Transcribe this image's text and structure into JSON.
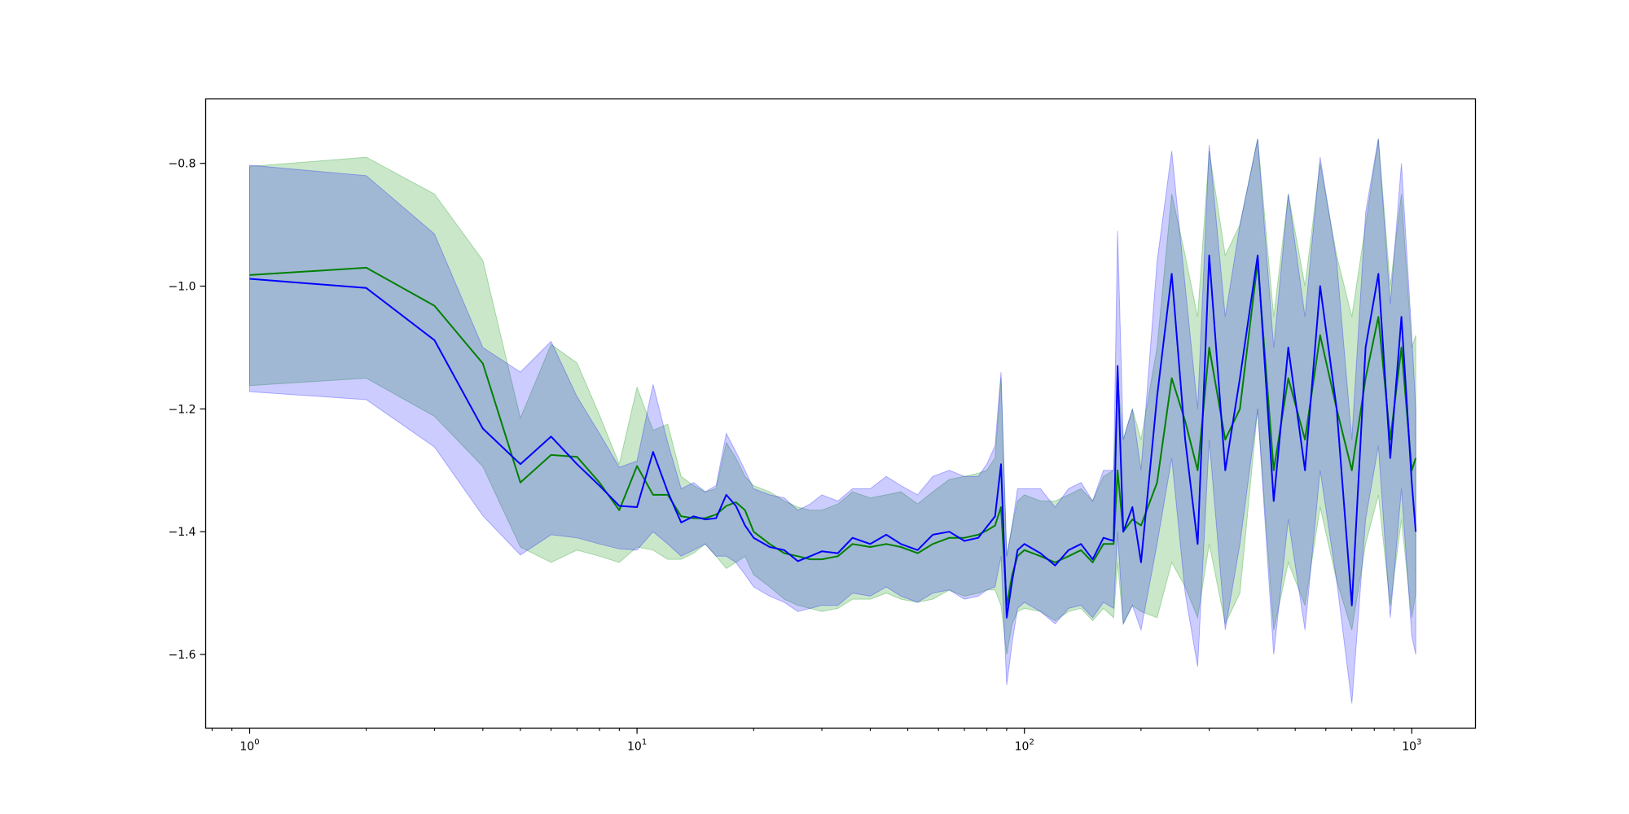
{
  "chart_data": {
    "type": "line",
    "xscale": "log",
    "xlim": [
      0.77,
      1460
    ],
    "ylim": [
      -1.72,
      -0.695
    ],
    "grid": false,
    "title": "",
    "xlabel": "",
    "ylabel": "",
    "xticks": [
      {
        "value": 1,
        "base": "10",
        "exp": "0"
      },
      {
        "value": 10,
        "base": "10",
        "exp": "1"
      },
      {
        "value": 100,
        "base": "10",
        "exp": "2"
      },
      {
        "value": 1000,
        "base": "10",
        "exp": "3"
      }
    ],
    "yticks": [
      {
        "value": -0.8,
        "label": "−0.8"
      },
      {
        "value": -1.0,
        "label": "−1.0"
      },
      {
        "value": -1.2,
        "label": "−1.2"
      },
      {
        "value": -1.4,
        "label": "−1.4"
      },
      {
        "value": -1.6,
        "label": "−1.6"
      }
    ],
    "series": [
      {
        "color": "#008000",
        "band_color": "#2ca02c",
        "band_opacity": 0.25,
        "x": [
          1,
          2,
          3,
          4,
          5,
          6,
          7,
          8,
          9,
          10,
          11,
          12,
          13,
          14,
          15,
          16,
          17,
          18,
          19,
          20,
          22,
          24,
          26,
          28,
          30,
          33,
          36,
          40,
          44,
          48,
          53,
          58,
          64,
          70,
          76,
          80,
          84,
          87,
          90,
          93,
          96,
          100,
          110,
          120,
          130,
          140,
          150,
          160,
          170,
          174,
          180,
          190,
          200,
          220,
          240,
          260,
          280,
          300,
          330,
          360,
          400,
          440,
          480,
          530,
          580,
          640,
          700,
          760,
          820,
          880,
          940,
          1000,
          1024
        ],
        "mean": [
          -0.982,
          -0.97,
          -1.032,
          -1.126,
          -1.32,
          -1.275,
          -1.278,
          -1.32,
          -1.365,
          -1.293,
          -1.34,
          -1.34,
          -1.375,
          -1.378,
          -1.378,
          -1.372,
          -1.358,
          -1.352,
          -1.365,
          -1.4,
          -1.42,
          -1.435,
          -1.44,
          -1.445,
          -1.445,
          -1.44,
          -1.42,
          -1.425,
          -1.42,
          -1.425,
          -1.435,
          -1.42,
          -1.41,
          -1.41,
          -1.405,
          -1.398,
          -1.39,
          -1.36,
          -1.52,
          -1.47,
          -1.44,
          -1.43,
          -1.44,
          -1.45,
          -1.44,
          -1.43,
          -1.45,
          -1.42,
          -1.42,
          -1.3,
          -1.4,
          -1.38,
          -1.39,
          -1.32,
          -1.15,
          -1.22,
          -1.3,
          -1.1,
          -1.25,
          -1.2,
          -0.96,
          -1.3,
          -1.15,
          -1.25,
          -1.08,
          -1.2,
          -1.3,
          -1.15,
          -1.05,
          -1.25,
          -1.1,
          -1.3,
          -1.28
        ],
        "upper": [
          -0.805,
          -0.79,
          -0.85,
          -0.958,
          -1.215,
          -1.095,
          -1.125,
          -1.21,
          -1.29,
          -1.165,
          -1.235,
          -1.225,
          -1.31,
          -1.325,
          -1.335,
          -1.33,
          -1.255,
          -1.28,
          -1.31,
          -1.325,
          -1.335,
          -1.35,
          -1.36,
          -1.365,
          -1.365,
          -1.355,
          -1.335,
          -1.345,
          -1.34,
          -1.335,
          -1.355,
          -1.335,
          -1.315,
          -1.31,
          -1.305,
          -1.3,
          -1.28,
          -1.15,
          -1.44,
          -1.39,
          -1.35,
          -1.34,
          -1.35,
          -1.35,
          -1.34,
          -1.33,
          -1.35,
          -1.31,
          -1.3,
          -1.15,
          -1.25,
          -1.2,
          -1.25,
          -1.1,
          -0.85,
          -0.95,
          -1.05,
          -0.78,
          -0.95,
          -0.9,
          -0.76,
          -1.05,
          -0.85,
          -1.0,
          -0.8,
          -0.95,
          -1.05,
          -0.9,
          -0.76,
          -1.0,
          -0.85,
          -1.1,
          -1.08
        ],
        "lower": [
          -1.162,
          -1.15,
          -1.212,
          -1.294,
          -1.425,
          -1.45,
          -1.43,
          -1.44,
          -1.45,
          -1.425,
          -1.43,
          -1.445,
          -1.445,
          -1.435,
          -1.42,
          -1.44,
          -1.46,
          -1.45,
          -1.44,
          -1.47,
          -1.49,
          -1.51,
          -1.52,
          -1.525,
          -1.53,
          -1.525,
          -1.51,
          -1.51,
          -1.5,
          -1.51,
          -1.515,
          -1.51,
          -1.495,
          -1.505,
          -1.5,
          -1.495,
          -1.495,
          -1.52,
          -1.6,
          -1.55,
          -1.53,
          -1.525,
          -1.53,
          -1.545,
          -1.53,
          -1.525,
          -1.545,
          -1.525,
          -1.54,
          -1.45,
          -1.55,
          -1.52,
          -1.53,
          -1.54,
          -1.45,
          -1.49,
          -1.54,
          -1.42,
          -1.55,
          -1.5,
          -1.2,
          -1.56,
          -1.45,
          -1.52,
          -1.36,
          -1.48,
          -1.56,
          -1.42,
          -1.34,
          -1.52,
          -1.38,
          -1.54,
          -1.5
        ]
      },
      {
        "color": "#0000ff",
        "band_color": "#0000ff",
        "band_opacity": 0.2,
        "x": [
          1,
          2,
          3,
          4,
          5,
          6,
          7,
          8,
          9,
          10,
          11,
          12,
          13,
          14,
          15,
          16,
          17,
          18,
          19,
          20,
          22,
          24,
          26,
          28,
          30,
          33,
          36,
          40,
          44,
          48,
          53,
          58,
          64,
          70,
          76,
          80,
          84,
          87,
          90,
          93,
          96,
          100,
          110,
          120,
          130,
          140,
          150,
          160,
          170,
          174,
          180,
          190,
          200,
          220,
          240,
          260,
          280,
          300,
          330,
          360,
          400,
          440,
          480,
          530,
          580,
          640,
          700,
          760,
          820,
          880,
          940,
          1000,
          1024
        ],
        "mean": [
          -0.988,
          -1.003,
          -1.088,
          -1.232,
          -1.29,
          -1.245,
          -1.29,
          -1.325,
          -1.358,
          -1.36,
          -1.27,
          -1.335,
          -1.385,
          -1.375,
          -1.38,
          -1.378,
          -1.34,
          -1.358,
          -1.39,
          -1.41,
          -1.425,
          -1.43,
          -1.448,
          -1.44,
          -1.432,
          -1.435,
          -1.41,
          -1.42,
          -1.405,
          -1.42,
          -1.43,
          -1.405,
          -1.4,
          -1.415,
          -1.41,
          -1.392,
          -1.375,
          -1.29,
          -1.54,
          -1.48,
          -1.43,
          -1.42,
          -1.435,
          -1.455,
          -1.43,
          -1.42,
          -1.445,
          -1.41,
          -1.415,
          -1.13,
          -1.4,
          -1.36,
          -1.45,
          -1.18,
          -0.98,
          -1.25,
          -1.42,
          -0.95,
          -1.3,
          -1.15,
          -0.95,
          -1.35,
          -1.1,
          -1.3,
          -1.0,
          -1.2,
          -1.52,
          -1.1,
          -0.98,
          -1.28,
          -1.05,
          -1.32,
          -1.4
        ],
        "upper": [
          -0.803,
          -0.82,
          -0.915,
          -1.1,
          -1.14,
          -1.09,
          -1.18,
          -1.24,
          -1.295,
          -1.285,
          -1.16,
          -1.255,
          -1.33,
          -1.32,
          -1.335,
          -1.325,
          -1.24,
          -1.27,
          -1.3,
          -1.33,
          -1.34,
          -1.345,
          -1.365,
          -1.355,
          -1.34,
          -1.35,
          -1.33,
          -1.33,
          -1.31,
          -1.325,
          -1.34,
          -1.31,
          -1.3,
          -1.31,
          -1.31,
          -1.29,
          -1.26,
          -1.14,
          -1.44,
          -1.39,
          -1.33,
          -1.33,
          -1.33,
          -1.36,
          -1.33,
          -1.32,
          -1.35,
          -1.3,
          -1.3,
          -0.91,
          -1.25,
          -1.2,
          -1.3,
          -0.96,
          -0.78,
          -1.0,
          -1.2,
          -0.77,
          -1.05,
          -0.9,
          -0.76,
          -1.1,
          -0.85,
          -1.05,
          -0.79,
          -0.96,
          -1.25,
          -0.88,
          -0.76,
          -1.03,
          -0.8,
          -1.08,
          -1.2
        ],
        "lower": [
          -1.172,
          -1.185,
          -1.262,
          -1.374,
          -1.438,
          -1.405,
          -1.41,
          -1.42,
          -1.428,
          -1.43,
          -1.4,
          -1.42,
          -1.44,
          -1.43,
          -1.42,
          -1.44,
          -1.44,
          -1.45,
          -1.47,
          -1.49,
          -1.505,
          -1.515,
          -1.53,
          -1.525,
          -1.52,
          -1.52,
          -1.5,
          -1.505,
          -1.49,
          -1.505,
          -1.515,
          -1.5,
          -1.495,
          -1.51,
          -1.505,
          -1.495,
          -1.49,
          -1.44,
          -1.65,
          -1.58,
          -1.525,
          -1.515,
          -1.53,
          -1.55,
          -1.525,
          -1.52,
          -1.54,
          -1.515,
          -1.525,
          -1.4,
          -1.55,
          -1.52,
          -1.56,
          -1.42,
          -1.28,
          -1.5,
          -1.62,
          -1.25,
          -1.56,
          -1.42,
          -1.2,
          -1.6,
          -1.38,
          -1.56,
          -1.3,
          -1.48,
          -1.68,
          -1.38,
          -1.26,
          -1.54,
          -1.33,
          -1.57,
          -1.6
        ]
      }
    ]
  }
}
